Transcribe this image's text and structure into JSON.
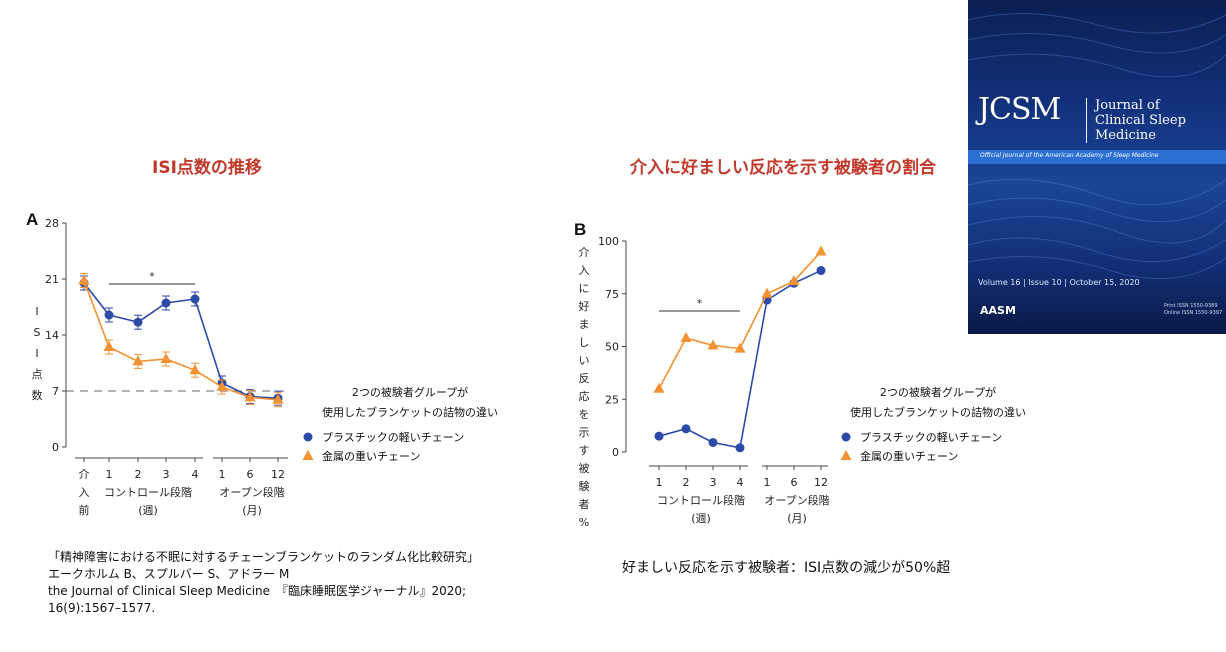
{
  "titles": {
    "a": "ISI点数の推移",
    "b": "介入に好ましい反応を示す被験者の割合"
  },
  "colors": {
    "title": "#c0392b",
    "blue": "#2e4aa8",
    "orange": "#f39232"
  },
  "chart_data": [
    {
      "panel": "A",
      "type": "line",
      "ylabel": "ISI点数",
      "ylim": [
        0,
        28
      ],
      "yticks": [
        "0",
        "7",
        "14",
        "21",
        "28"
      ],
      "xticks": [
        "介入前",
        "1",
        "2",
        "3",
        "4",
        "1",
        "6",
        "12"
      ],
      "xgroups": [
        [
          "コントロール段階",
          "(週)"
        ],
        [
          "オープン段階",
          "(月)"
        ]
      ],
      "reference_line": 7,
      "significance": "*",
      "legend_title": [
        "2つの被験者グループが",
        "使用したブランケットの詰物の違い"
      ],
      "series": [
        {
          "name": "プラスチックの軽いチェーン",
          "marker": "circle",
          "values": [
            20.5,
            16.5,
            15.6,
            18.0,
            18.5,
            8.0,
            6.3,
            6.1
          ]
        },
        {
          "name": "金属の重いチェーン",
          "marker": "triangle",
          "values": [
            20.8,
            12.5,
            10.7,
            11.0,
            9.6,
            7.5,
            6.2,
            5.9
          ]
        }
      ]
    },
    {
      "panel": "B",
      "type": "line",
      "ylabel": "介入に好ましい反応を示す被験者%",
      "ylim": [
        0,
        100
      ],
      "yticks": [
        "0",
        "25",
        "50",
        "75",
        "100"
      ],
      "xticks": [
        "1",
        "2",
        "3",
        "4",
        "1",
        "6",
        "12"
      ],
      "xgroups": [
        [
          "コントロール段階",
          "(週)"
        ],
        [
          "オープン段階",
          "(月)"
        ]
      ],
      "significance": "*",
      "legend_title": [
        "2つの被験者グループが",
        "使用したブランケットの詰物の違い"
      ],
      "series": [
        {
          "name": "プラスチックの軽いチェーン",
          "marker": "circle",
          "values": [
            7.5,
            11,
            4.5,
            2,
            72,
            80,
            86
          ]
        },
        {
          "name": "金属の重いチェーン",
          "marker": "triangle",
          "values": [
            30,
            54,
            50.5,
            49,
            75,
            81,
            95
          ]
        }
      ]
    }
  ],
  "citation": [
    "「精神障害における不眠に対するチェーンブランケットのランダム化比較研究」",
    "エークホルム B、スプルバー S、アドラー M",
    "the Journal of Clinical Sleep Medicine　『臨床睡眠医学ジャーナル』2020;",
    "16(9):1567–1577."
  ],
  "note": "好ましい反応を示す被験者：ISI点数の減少が50%超",
  "cover": {
    "logo": "JCSM",
    "journal_line1": "Journal of",
    "journal_line2": "Clinical Sleep Medicine",
    "band_text": "Official Journal of the American Academy of Sleep Medicine",
    "issue": "Volume 16 | Issue 10 | October 15, 2020",
    "publisher": "AASM",
    "issn_print": "Print ISSN 1550-9389",
    "issn_online": "Online ISSN 1550-9397"
  }
}
